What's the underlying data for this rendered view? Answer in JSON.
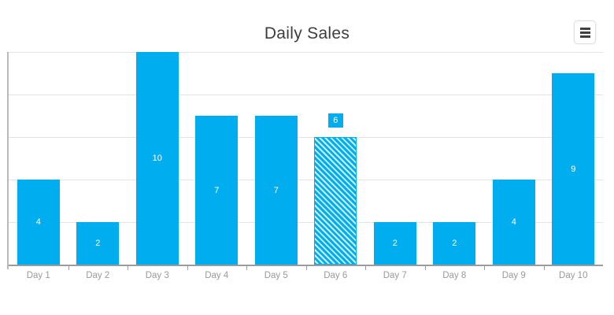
{
  "toolbar": {
    "menu_icon": "hamburger-menu-icon"
  },
  "chart_data": {
    "type": "bar",
    "title": "Daily Sales",
    "categories": [
      "Day 1",
      "Day 2",
      "Day 3",
      "Day 4",
      "Day 5",
      "Day 6",
      "Day 7",
      "Day 8",
      "Day 9",
      "Day 10"
    ],
    "values": [
      4,
      2,
      10,
      7,
      7,
      6,
      2,
      2,
      4,
      9
    ],
    "xlabel": "",
    "ylabel": "",
    "ylim": [
      0,
      10
    ],
    "grid_step": 2,
    "gridlines": true,
    "legend": "none",
    "bar_color": "#00AEEF",
    "value_label_color": "#ffffff",
    "pattern_bar": {
      "index": 5,
      "category": "Day 6",
      "style": "diagonal-stripes",
      "stripe_color": "#00AEEF",
      "stripe_background": "#cdeffb",
      "callout_label": "6",
      "callout_background": "#00AEEF",
      "callout_text_color": "#ffffff"
    }
  }
}
